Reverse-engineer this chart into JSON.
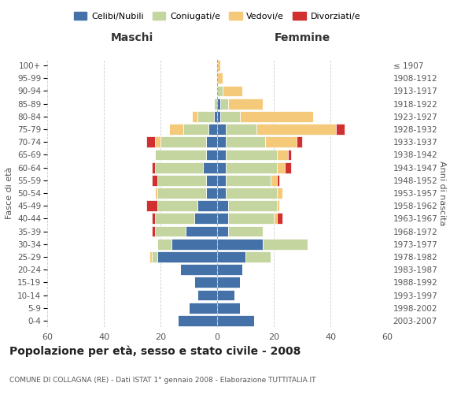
{
  "age_groups": [
    "0-4",
    "5-9",
    "10-14",
    "15-19",
    "20-24",
    "25-29",
    "30-34",
    "35-39",
    "40-44",
    "45-49",
    "50-54",
    "55-59",
    "60-64",
    "65-69",
    "70-74",
    "75-79",
    "80-84",
    "85-89",
    "90-94",
    "95-99",
    "100+"
  ],
  "birth_years": [
    "2003-2007",
    "1998-2002",
    "1993-1997",
    "1988-1992",
    "1983-1987",
    "1978-1982",
    "1973-1977",
    "1968-1972",
    "1963-1967",
    "1958-1962",
    "1953-1957",
    "1948-1952",
    "1943-1947",
    "1938-1942",
    "1933-1937",
    "1928-1932",
    "1923-1927",
    "1918-1922",
    "1913-1917",
    "1908-1912",
    "≤ 1907"
  ],
  "colors": {
    "celibe": "#4472a8",
    "coniugato": "#c5d5a0",
    "vedovo": "#f5c97a",
    "divorziato": "#d03030"
  },
  "males": {
    "celibe": [
      14,
      10,
      7,
      8,
      13,
      21,
      16,
      11,
      8,
      7,
      4,
      4,
      5,
      4,
      4,
      3,
      1,
      0,
      0,
      0,
      0
    ],
    "coniugato": [
      0,
      0,
      0,
      0,
      0,
      2,
      5,
      11,
      14,
      14,
      17,
      17,
      17,
      18,
      16,
      9,
      6,
      1,
      0,
      0,
      0
    ],
    "vedovo": [
      0,
      0,
      0,
      0,
      0,
      1,
      0,
      0,
      0,
      0,
      1,
      0,
      0,
      0,
      2,
      5,
      2,
      0,
      0,
      0,
      0
    ],
    "divorziato": [
      0,
      0,
      0,
      0,
      0,
      0,
      0,
      1,
      1,
      4,
      0,
      2,
      1,
      0,
      3,
      0,
      0,
      0,
      0,
      0,
      0
    ]
  },
  "females": {
    "celibe": [
      13,
      8,
      6,
      8,
      9,
      10,
      16,
      4,
      4,
      4,
      3,
      3,
      3,
      3,
      3,
      3,
      1,
      1,
      0,
      0,
      0
    ],
    "coniugato": [
      0,
      0,
      0,
      0,
      0,
      9,
      16,
      12,
      16,
      17,
      18,
      16,
      18,
      18,
      14,
      11,
      7,
      3,
      2,
      0,
      0
    ],
    "vedovo": [
      0,
      0,
      0,
      0,
      0,
      0,
      0,
      0,
      1,
      1,
      2,
      2,
      3,
      4,
      11,
      28,
      26,
      12,
      7,
      2,
      1
    ],
    "divorziato": [
      0,
      0,
      0,
      0,
      0,
      0,
      0,
      0,
      2,
      0,
      0,
      1,
      2,
      1,
      2,
      3,
      0,
      0,
      0,
      0,
      0
    ]
  },
  "title": "Popolazione per età, sesso e stato civile - 2008",
  "subtitle": "COMUNE DI COLLAGNA (RE) - Dati ISTAT 1° gennaio 2008 - Elaborazione TUTTITALIA.IT",
  "xlabel_left": "Maschi",
  "xlabel_right": "Femmine",
  "ylabel_left": "Fasce di età",
  "ylabel_right": "Anni di nascita",
  "xlim": 60,
  "legend_labels": [
    "Celibi/Nubili",
    "Coniugati/e",
    "Vedovi/e",
    "Divorziati/e"
  ],
  "bg_color": "#ffffff",
  "grid_color": "#cccccc"
}
